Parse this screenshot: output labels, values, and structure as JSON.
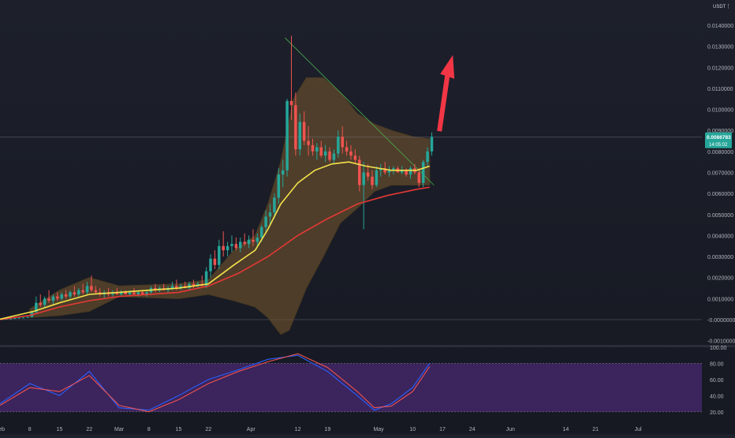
{
  "header": {
    "currency": "USDT",
    "menu_icon": "more-dots-icon"
  },
  "price_label": {
    "value": "0.0086783",
    "countdown": "14:05:02"
  },
  "colors": {
    "background_top": "#1c1f2a",
    "background_bottom": "#1a1d27",
    "candle_up": "#26a69a",
    "candle_down": "#ef5350",
    "bollinger_fill": "#7a5a2e",
    "bollinger_edge": "#4a3a22",
    "ma_fast": "#f5e24b",
    "ma_slow": "#e53935",
    "stoch_k": "#2962ff",
    "stoch_d": "#ef5350",
    "stoch_band": "#5b2d8e",
    "trendline": "#4caf50",
    "arrow": "#f23645",
    "axis_text": "#b2b5be"
  },
  "chart_data": [
    {
      "type": "candlestick",
      "y_ticks": [
        "0.0140000",
        "0.0130000",
        "0.0120000",
        "0.0110000",
        "0.0100000",
        "0.0090000",
        "0.0080000",
        "0.0070000",
        "0.0060000",
        "0.0050000",
        "0.0040000",
        "0.0030000",
        "0.0020000",
        "0.0010000",
        "-0.0000000",
        "-0.0010000"
      ],
      "ylim": [
        -0.0012,
        0.0152
      ],
      "x_ticks": [
        "Feb",
        "8",
        "15",
        "22",
        "Mar",
        "8",
        "15",
        "22",
        "Apr",
        "12",
        "19",
        "May",
        "10",
        "17",
        "24",
        "Jun",
        "14",
        "21",
        "Jul"
      ],
      "x_tick_days": [
        0,
        7,
        14,
        21,
        28,
        35,
        42,
        49,
        59,
        70,
        77,
        89,
        97,
        104,
        111,
        120,
        133,
        140,
        150
      ],
      "xlim_days": [
        0,
        165
      ],
      "candles": [
        [
          0,
          2e-05,
          4e-05,
          1e-05,
          3e-05
        ],
        [
          1,
          3e-05,
          5e-05,
          2e-05,
          4e-05
        ],
        [
          2,
          4e-05,
          6e-05,
          3e-05,
          5e-05
        ],
        [
          3,
          5e-05,
          8e-05,
          4e-05,
          7e-05
        ],
        [
          4,
          7e-05,
          0.0001,
          5e-05,
          9e-05
        ],
        [
          5,
          9e-05,
          0.00012,
          7e-05,
          0.0001
        ],
        [
          6,
          0.0001,
          0.00015,
          8e-05,
          0.00013
        ],
        [
          7,
          0.00013,
          0.0004,
          0.0001,
          0.00035
        ],
        [
          8,
          0.00035,
          0.0011,
          0.0003,
          0.0008
        ],
        [
          9,
          0.0008,
          0.0012,
          0.0006,
          0.0007
        ],
        [
          10,
          0.0007,
          0.0011,
          0.0006,
          0.001
        ],
        [
          11,
          0.001,
          0.0014,
          0.0008,
          0.0009
        ],
        [
          12,
          0.0009,
          0.0012,
          0.0007,
          0.0011
        ],
        [
          13,
          0.0011,
          0.0013,
          0.0009,
          0.001
        ],
        [
          14,
          0.001,
          0.0013,
          0.0009,
          0.0012
        ],
        [
          15,
          0.0012,
          0.0014,
          0.001,
          0.0011
        ],
        [
          16,
          0.0011,
          0.0014,
          0.001,
          0.0013
        ],
        [
          17,
          0.0013,
          0.0016,
          0.0011,
          0.0012
        ],
        [
          18,
          0.0012,
          0.0015,
          0.0011,
          0.0014
        ],
        [
          19,
          0.0014,
          0.0017,
          0.0012,
          0.0013
        ],
        [
          20,
          0.0013,
          0.0018,
          0.0012,
          0.0016
        ],
        [
          21,
          0.0016,
          0.0021,
          0.0013,
          0.0014
        ],
        [
          22,
          0.0014,
          0.0016,
          0.0012,
          0.0013
        ],
        [
          23,
          0.0013,
          0.0015,
          0.0011,
          0.0012
        ],
        [
          24,
          0.0012,
          0.0014,
          0.001,
          0.0013
        ],
        [
          25,
          0.0013,
          0.0015,
          0.0011,
          0.0012
        ],
        [
          26,
          0.0012,
          0.0014,
          0.0011,
          0.0013
        ],
        [
          27,
          0.0013,
          0.0015,
          0.0012,
          0.0012
        ],
        [
          28,
          0.0012,
          0.0014,
          0.0011,
          0.0013
        ],
        [
          29,
          0.0013,
          0.0014,
          0.0012,
          0.0012
        ],
        [
          30,
          0.0012,
          0.0014,
          0.0011,
          0.0013
        ],
        [
          31,
          0.0013,
          0.0015,
          0.0012,
          0.0012
        ],
        [
          32,
          0.0012,
          0.0014,
          0.0011,
          0.0013
        ],
        [
          33,
          0.0013,
          0.0014,
          0.0012,
          0.0012
        ],
        [
          34,
          0.0012,
          0.0014,
          0.0011,
          0.0013
        ],
        [
          35,
          0.0013,
          0.0016,
          0.0012,
          0.0015
        ],
        [
          36,
          0.0015,
          0.0017,
          0.0013,
          0.0014
        ],
        [
          37,
          0.0014,
          0.0016,
          0.0013,
          0.0015
        ],
        [
          38,
          0.0015,
          0.0017,
          0.0014,
          0.0014
        ],
        [
          39,
          0.0014,
          0.0016,
          0.0013,
          0.0015
        ],
        [
          40,
          0.0015,
          0.0018,
          0.0014,
          0.0016
        ],
        [
          41,
          0.0016,
          0.0019,
          0.0014,
          0.0015
        ],
        [
          42,
          0.0015,
          0.0017,
          0.0014,
          0.0016
        ],
        [
          43,
          0.0016,
          0.0018,
          0.0015,
          0.0015
        ],
        [
          44,
          0.0015,
          0.0018,
          0.0014,
          0.0017
        ],
        [
          45,
          0.0017,
          0.0019,
          0.0015,
          0.0016
        ],
        [
          46,
          0.0016,
          0.0018,
          0.0015,
          0.0017
        ],
        [
          47,
          0.0017,
          0.0021,
          0.0016,
          0.0016
        ],
        [
          48,
          0.0016,
          0.0025,
          0.0015,
          0.0023
        ],
        [
          49,
          0.0023,
          0.0031,
          0.002,
          0.0029
        ],
        [
          50,
          0.0029,
          0.0033,
          0.0024,
          0.0026
        ],
        [
          51,
          0.0026,
          0.0038,
          0.0024,
          0.0035
        ],
        [
          52,
          0.0035,
          0.0042,
          0.003,
          0.0033
        ],
        [
          53,
          0.0033,
          0.0037,
          0.003,
          0.0035
        ],
        [
          54,
          0.0035,
          0.004,
          0.0032,
          0.0036
        ],
        [
          55,
          0.0036,
          0.0039,
          0.0033,
          0.0034
        ],
        [
          56,
          0.0034,
          0.0039,
          0.0032,
          0.0037
        ],
        [
          57,
          0.0037,
          0.0041,
          0.0035,
          0.0036
        ],
        [
          58,
          0.0036,
          0.004,
          0.0034,
          0.0038
        ],
        [
          59,
          0.0038,
          0.0043,
          0.0035,
          0.0037
        ],
        [
          60,
          0.0037,
          0.0041,
          0.0035,
          0.0039
        ],
        [
          61,
          0.0039,
          0.0045,
          0.0037,
          0.0044
        ],
        [
          62,
          0.0044,
          0.0052,
          0.0041,
          0.0049
        ],
        [
          63,
          0.0049,
          0.0055,
          0.0045,
          0.0051
        ],
        [
          64,
          0.0051,
          0.006,
          0.0048,
          0.0058
        ],
        [
          65,
          0.0058,
          0.0072,
          0.0055,
          0.0069
        ],
        [
          66,
          0.0069,
          0.0076,
          0.0063,
          0.0071
        ],
        [
          67,
          0.0071,
          0.0105,
          0.0068,
          0.0104
        ],
        [
          68,
          0.0104,
          0.0135,
          0.0095,
          0.0102
        ],
        [
          69,
          0.0102,
          0.0108,
          0.0078,
          0.0081
        ],
        [
          70,
          0.0081,
          0.0098,
          0.0078,
          0.0094
        ],
        [
          71,
          0.0094,
          0.0099,
          0.0083,
          0.0085
        ],
        [
          72,
          0.0085,
          0.0092,
          0.0078,
          0.0083
        ],
        [
          73,
          0.0083,
          0.0086,
          0.0078,
          0.008
        ],
        [
          74,
          0.008,
          0.0084,
          0.0076,
          0.0082
        ],
        [
          75,
          0.0082,
          0.0085,
          0.0077,
          0.0078
        ],
        [
          76,
          0.0078,
          0.0083,
          0.0075,
          0.008
        ],
        [
          77,
          0.008,
          0.0082,
          0.0075,
          0.0076
        ],
        [
          78,
          0.0076,
          0.0081,
          0.0074,
          0.0079
        ],
        [
          79,
          0.0079,
          0.009,
          0.0077,
          0.0087
        ],
        [
          80,
          0.0087,
          0.0092,
          0.0079,
          0.0082
        ],
        [
          81,
          0.0082,
          0.0085,
          0.0078,
          0.008
        ],
        [
          82,
          0.008,
          0.0083,
          0.0076,
          0.0078
        ],
        [
          83,
          0.0078,
          0.0081,
          0.0074,
          0.0076
        ],
        [
          84,
          0.0076,
          0.0078,
          0.0061,
          0.0064
        ],
        [
          85,
          0.0064,
          0.0075,
          0.0043,
          0.007
        ],
        [
          86,
          0.007,
          0.0074,
          0.0066,
          0.0068
        ],
        [
          87,
          0.0068,
          0.0071,
          0.0062,
          0.0064
        ],
        [
          88,
          0.0064,
          0.0073,
          0.0063,
          0.0071
        ],
        [
          89,
          0.0071,
          0.0074,
          0.0068,
          0.0072
        ],
        [
          90,
          0.0072,
          0.0075,
          0.0069,
          0.007
        ],
        [
          91,
          0.007,
          0.0073,
          0.0068,
          0.0071
        ],
        [
          92,
          0.0071,
          0.0073,
          0.0069,
          0.0072
        ],
        [
          93,
          0.0072,
          0.0073,
          0.007,
          0.007
        ],
        [
          94,
          0.007,
          0.0073,
          0.0069,
          0.0071
        ],
        [
          95,
          0.0071,
          0.0072,
          0.0068,
          0.0069
        ],
        [
          96,
          0.0069,
          0.0073,
          0.0067,
          0.0072
        ],
        [
          97,
          0.0072,
          0.0074,
          0.0069,
          0.007
        ],
        [
          98,
          0.007,
          0.0072,
          0.0063,
          0.0065
        ],
        [
          99,
          0.0065,
          0.0076,
          0.0063,
          0.0075
        ],
        [
          100,
          0.0075,
          0.0082,
          0.0073,
          0.008
        ],
        [
          101,
          0.008,
          0.0089,
          0.0078,
          0.0087
        ]
      ],
      "ma_fast": [
        [
          0,
          2e-05
        ],
        [
          8,
          0.0004
        ],
        [
          14,
          0.0008
        ],
        [
          21,
          0.0012
        ],
        [
          28,
          0.0013
        ],
        [
          42,
          0.0015
        ],
        [
          49,
          0.0017
        ],
        [
          55,
          0.0026
        ],
        [
          60,
          0.0033
        ],
        [
          63,
          0.0043
        ],
        [
          66,
          0.0055
        ],
        [
          70,
          0.0065
        ],
        [
          74,
          0.0071
        ],
        [
          78,
          0.0074
        ],
        [
          82,
          0.0075
        ],
        [
          86,
          0.0073
        ],
        [
          92,
          0.0071
        ],
        [
          98,
          0.0071
        ],
        [
          101,
          0.0073
        ]
      ],
      "ma_slow": [
        [
          0,
          1e-05
        ],
        [
          7,
          0.0002
        ],
        [
          14,
          0.0006
        ],
        [
          21,
          0.0009
        ],
        [
          28,
          0.0011
        ],
        [
          42,
          0.0013
        ],
        [
          49,
          0.0016
        ],
        [
          56,
          0.0022
        ],
        [
          63,
          0.003
        ],
        [
          70,
          0.004
        ],
        [
          77,
          0.0048
        ],
        [
          84,
          0.0055
        ],
        [
          91,
          0.0059
        ],
        [
          98,
          0.0062
        ],
        [
          101,
          0.0063
        ]
      ],
      "bollinger_upper": [
        [
          7,
          0.0005
        ],
        [
          14,
          0.0014
        ],
        [
          21,
          0.002
        ],
        [
          28,
          0.0016
        ],
        [
          42,
          0.0017
        ],
        [
          49,
          0.0019
        ],
        [
          55,
          0.0033
        ],
        [
          60,
          0.004
        ],
        [
          63,
          0.0055
        ],
        [
          66,
          0.0075
        ],
        [
          69,
          0.0105
        ],
        [
          72,
          0.0115
        ],
        [
          76,
          0.0115
        ],
        [
          80,
          0.0108
        ],
        [
          84,
          0.0098
        ],
        [
          88,
          0.0093
        ],
        [
          92,
          0.009
        ],
        [
          97,
          0.0087
        ],
        [
          101,
          0.0086
        ]
      ],
      "bollinger_lower": [
        [
          7,
          0.0001
        ],
        [
          14,
          0.0002
        ],
        [
          21,
          0.0004
        ],
        [
          28,
          0.0011
        ],
        [
          42,
          0.001
        ],
        [
          49,
          0.0012
        ],
        [
          55,
          0.0009
        ],
        [
          60,
          0.0006
        ],
        [
          63,
          0.0001
        ],
        [
          66,
          -0.0007
        ],
        [
          68,
          -0.0005
        ],
        [
          72,
          0.0015
        ],
        [
          76,
          0.003
        ],
        [
          80,
          0.0046
        ],
        [
          84,
          0.0053
        ],
        [
          88,
          0.0061
        ],
        [
          92,
          0.0064
        ],
        [
          97,
          0.0064
        ],
        [
          101,
          0.0064
        ]
      ],
      "trendline": [
        [
          67,
          0.0134
        ],
        [
          102,
          0.0064
        ]
      ],
      "current_price": 0.0086783
    },
    {
      "type": "line",
      "y_ticks": [
        "100.00",
        "80.00",
        "60.00",
        "40.00",
        "20.00"
      ],
      "ylim": [
        10,
        100
      ],
      "band": [
        20,
        80
      ],
      "series": [
        {
          "values": [
            [
              0,
              30
            ],
            [
              7,
              55
            ],
            [
              14,
              40
            ],
            [
              21,
              70
            ],
            [
              28,
              25
            ],
            [
              35,
              22
            ],
            [
              42,
              40
            ],
            [
              49,
              60
            ],
            [
              56,
              72
            ],
            [
              63,
              85
            ],
            [
              70,
              90
            ],
            [
              77,
              70
            ],
            [
              84,
              40
            ],
            [
              88,
              22
            ],
            [
              92,
              30
            ],
            [
              97,
              50
            ],
            [
              101,
              80
            ]
          ]
        },
        {
          "values": [
            [
              0,
              28
            ],
            [
              7,
              50
            ],
            [
              14,
              45
            ],
            [
              21,
              65
            ],
            [
              28,
              28
            ],
            [
              35,
              20
            ],
            [
              42,
              35
            ],
            [
              49,
              55
            ],
            [
              56,
              70
            ],
            [
              63,
              82
            ],
            [
              70,
              92
            ],
            [
              77,
              75
            ],
            [
              84,
              45
            ],
            [
              88,
              25
            ],
            [
              92,
              27
            ],
            [
              97,
              45
            ],
            [
              101,
              76
            ]
          ]
        }
      ]
    }
  ]
}
